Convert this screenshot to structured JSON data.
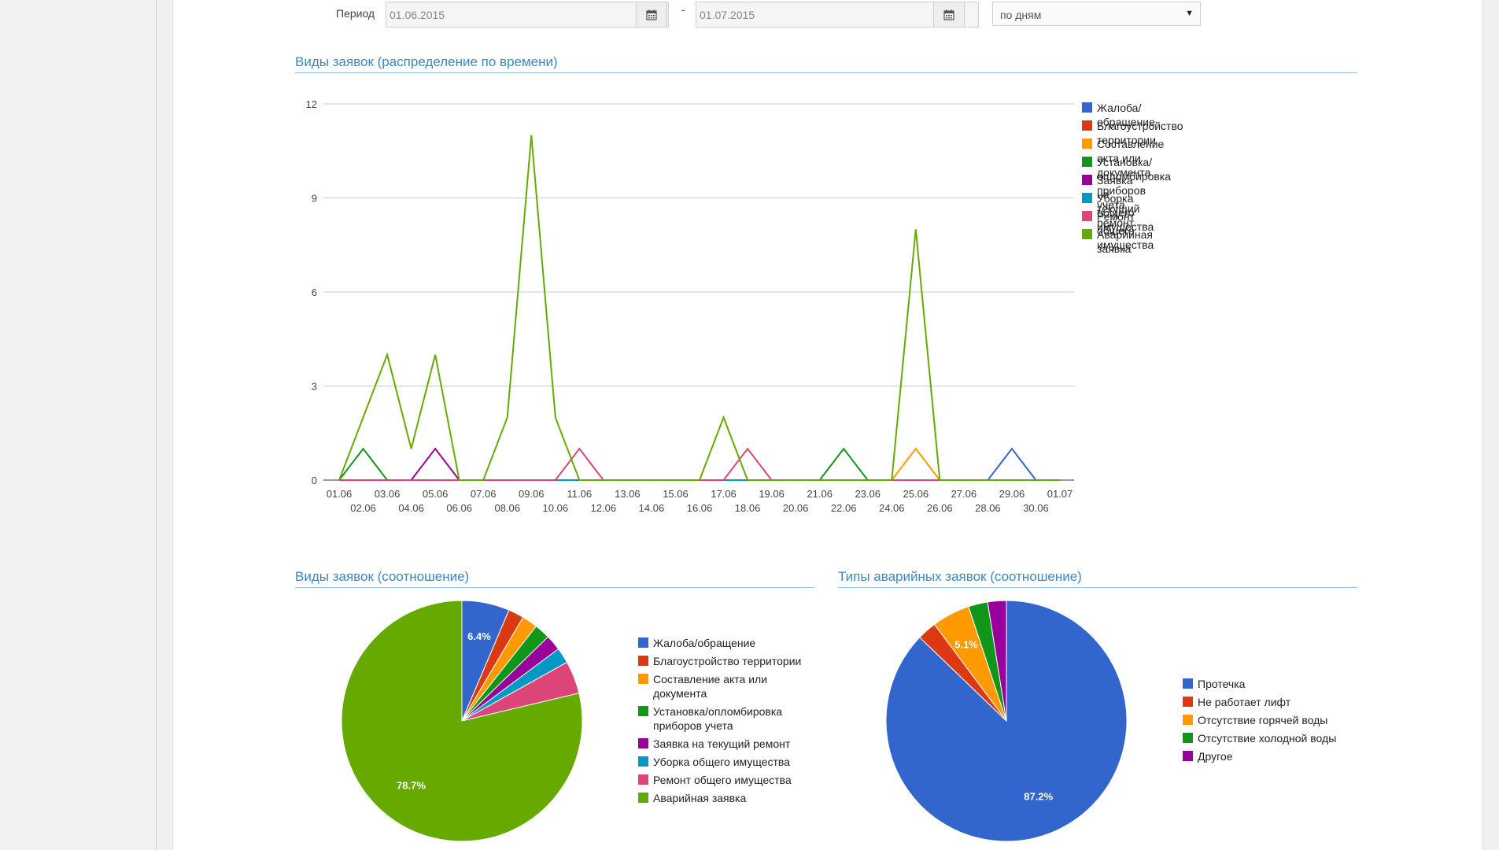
{
  "filters": {
    "period_label": "Период",
    "date_from": "01.06.2015",
    "date_to": "01.07.2015",
    "separator": "-",
    "group_by": "по дням"
  },
  "icons": {
    "calendar": "calendar-icon",
    "dropdown": "caret-down-icon"
  },
  "sections": {
    "line_title": "Виды заявок (распределение по времени)",
    "pie1_title": "Виды заявок (соотношение)",
    "pie2_title": "Типы аварийных заявок (соотношение)"
  },
  "chart_data": [
    {
      "type": "line",
      "title": "Виды заявок (распределение по времени)",
      "categories": [
        "01.06",
        "02.06",
        "03.06",
        "04.06",
        "05.06",
        "06.06",
        "07.06",
        "08.06",
        "09.06",
        "10.06",
        "11.06",
        "12.06",
        "13.06",
        "14.06",
        "15.06",
        "16.06",
        "17.06",
        "18.06",
        "19.06",
        "20.06",
        "21.06",
        "22.06",
        "23.06",
        "24.06",
        "25.06",
        "26.06",
        "27.06",
        "28.06",
        "29.06",
        "30.06",
        "01.07"
      ],
      "ylim": [
        0,
        12
      ],
      "yticks": [
        "0",
        "3",
        "6",
        "9",
        "12"
      ],
      "grid": true,
      "legend_position": "right",
      "series": [
        {
          "name": "Жалоба/обращение",
          "color": "#3366cc",
          "values": [
            0,
            0,
            0,
            0,
            0,
            0,
            0,
            0,
            0,
            0,
            0,
            0,
            0,
            0,
            0,
            0,
            0,
            0,
            0,
            0,
            0,
            0,
            0,
            0,
            0,
            0,
            0,
            0,
            1,
            0,
            0
          ]
        },
        {
          "name": "Благоустройство территории",
          "color": "#dc3912",
          "values": [
            0,
            0,
            0,
            0,
            0,
            0,
            0,
            0,
            0,
            0,
            0,
            0,
            0,
            0,
            0,
            0,
            0,
            0,
            0,
            0,
            0,
            0,
            0,
            0,
            0,
            0,
            0,
            0,
            0,
            0,
            0
          ]
        },
        {
          "name": "Составление акта или документа",
          "color": "#ff9900",
          "values": [
            0,
            0,
            0,
            0,
            0,
            0,
            0,
            0,
            0,
            0,
            0,
            0,
            0,
            0,
            0,
            0,
            0,
            0,
            0,
            0,
            0,
            0,
            0,
            0,
            1,
            0,
            0,
            0,
            0,
            0,
            0
          ]
        },
        {
          "name": "Установка/опломбировка приборов учета",
          "color": "#109618",
          "values": [
            0,
            1,
            0,
            0,
            0,
            0,
            0,
            0,
            0,
            0,
            0,
            0,
            0,
            0,
            0,
            0,
            0,
            0,
            0,
            0,
            0,
            1,
            0,
            0,
            0,
            0,
            0,
            0,
            0,
            0,
            0
          ]
        },
        {
          "name": "Заявка на текущий ремонт",
          "color": "#990099",
          "values": [
            0,
            0,
            0,
            0,
            1,
            0,
            0,
            0,
            0,
            0,
            0,
            0,
            0,
            0,
            0,
            0,
            0,
            0,
            0,
            0,
            0,
            0,
            0,
            0,
            0,
            0,
            0,
            0,
            0,
            0,
            0
          ]
        },
        {
          "name": "Уборка общего имущества",
          "color": "#0099c6",
          "values": [
            0,
            0,
            0,
            0,
            0,
            0,
            0,
            0,
            0,
            0,
            0,
            0,
            0,
            0,
            0,
            0,
            0,
            0,
            0,
            0,
            0,
            0,
            0,
            0,
            0,
            0,
            0,
            0,
            0,
            0,
            0
          ]
        },
        {
          "name": "Ремонт общего имущества",
          "color": "#dd4477",
          "values": [
            0,
            0,
            0,
            0,
            0,
            0,
            0,
            0,
            0,
            0,
            1,
            0,
            0,
            0,
            0,
            0,
            0,
            1,
            0,
            0,
            0,
            0,
            0,
            0,
            0,
            0,
            0,
            0,
            0,
            0,
            0
          ]
        },
        {
          "name": "Аварийная заявка",
          "color": "#66aa00",
          "values": [
            0,
            2,
            4,
            1,
            4,
            0,
            0,
            2,
            11,
            2,
            0,
            0,
            0,
            0,
            0,
            0,
            2,
            0,
            0,
            0,
            0,
            0,
            0,
            0,
            8,
            0,
            0,
            0,
            0,
            0,
            0
          ]
        }
      ]
    },
    {
      "type": "pie",
      "title": "Виды заявок (соотношение)",
      "legend_position": "right",
      "slices": [
        {
          "name": "Жалоба/обращение",
          "value": 6.4,
          "label": "6.4%",
          "color": "#3366cc"
        },
        {
          "name": "Благоустройство территории",
          "value": 2.1,
          "label": "",
          "color": "#dc3912"
        },
        {
          "name": "Составление акта или документа",
          "value": 2.1,
          "label": "",
          "color": "#ff9900"
        },
        {
          "name": "Установка/опломбировка приборов учета",
          "value": 2.1,
          "label": "",
          "color": "#109618"
        },
        {
          "name": "Заявка на текущий ремонт",
          "value": 2.1,
          "label": "",
          "color": "#990099"
        },
        {
          "name": "Уборка общего имущества",
          "value": 2.1,
          "label": "",
          "color": "#0099c6"
        },
        {
          "name": "Ремонт общего имущества",
          "value": 4.4,
          "label": "",
          "color": "#dd4477"
        },
        {
          "name": "Аварийная заявка",
          "value": 78.7,
          "label": "78.7%",
          "color": "#66aa00"
        }
      ]
    },
    {
      "type": "pie",
      "title": "Типы аварийных заявок (соотношение)",
      "legend_position": "right",
      "slices": [
        {
          "name": "Протечка",
          "value": 87.2,
          "label": "87.2%",
          "color": "#3366cc"
        },
        {
          "name": "Не работает лифт",
          "value": 2.6,
          "label": "",
          "color": "#dc3912"
        },
        {
          "name": "Отсутствие горячей воды",
          "value": 5.1,
          "label": "5.1%",
          "color": "#ff9900"
        },
        {
          "name": "Отсутствие холодной воды",
          "value": 2.6,
          "label": "",
          "color": "#109618"
        },
        {
          "name": "Другое",
          "value": 2.5,
          "label": "",
          "color": "#990099"
        }
      ]
    }
  ]
}
